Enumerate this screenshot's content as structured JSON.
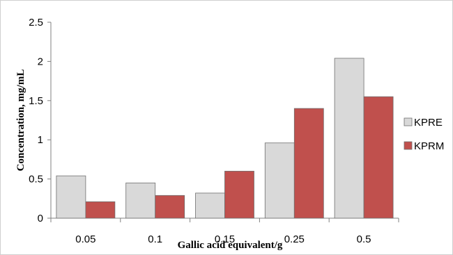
{
  "chart_data": {
    "type": "bar",
    "categories": [
      "0.05",
      "0.1",
      "0.15",
      "0.25",
      "0.5"
    ],
    "series": [
      {
        "name": "KPRE",
        "values": [
          0.54,
          0.45,
          0.32,
          0.96,
          2.04
        ],
        "color": "#d9d9d9"
      },
      {
        "name": "KPRM",
        "values": [
          0.21,
          0.29,
          0.6,
          1.4,
          1.55
        ],
        "color": "#c0504d"
      }
    ],
    "title": "",
    "xlabel": "Gallic acid equivalent/g",
    "ylabel": "Concentration, mg/mL",
    "ylim": [
      0,
      2.5
    ],
    "yticks": [
      "0",
      "0.5",
      "1",
      "1.5",
      "2",
      "2.5"
    ],
    "grid": false,
    "legend_position": "right"
  }
}
